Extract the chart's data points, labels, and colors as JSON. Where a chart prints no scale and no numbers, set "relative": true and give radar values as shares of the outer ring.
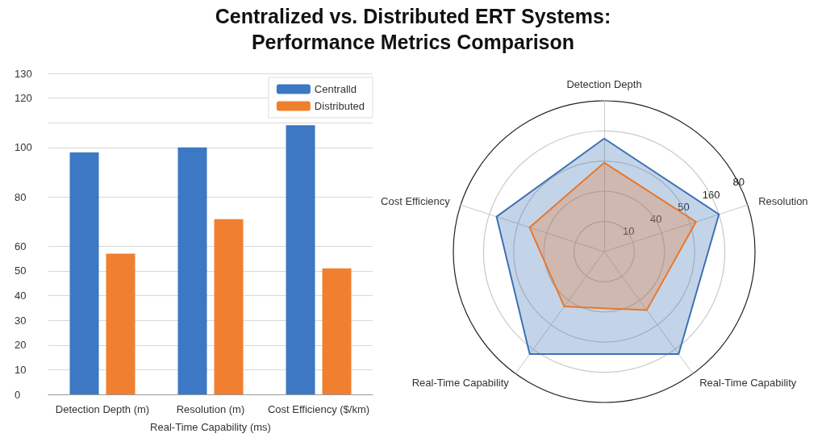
{
  "chart_data": [
    {
      "type": "bar",
      "title": "Centralized vs. Distributed ERT Systems:\nPerformance Metrics Comparison",
      "xlabel": "Real-Time Capability (ms)",
      "categories": [
        "Detection Depth (m)",
        "Resolution (m)",
        "Cost Efficiency ($/km)"
      ],
      "series": [
        {
          "name": "Centralld",
          "color": "#3c78c3",
          "values": [
            98,
            100,
            109
          ]
        },
        {
          "name": "Distributed",
          "color": "#f08030",
          "values": [
            57,
            71,
            51
          ]
        }
      ],
      "ylim": [
        0,
        130
      ],
      "yticks": [
        0,
        10,
        20,
        30,
        40,
        50,
        60,
        80,
        100,
        {
          "value": 110,
          "label": null
        },
        120,
        130
      ],
      "grid": "y",
      "legend": "top right"
    },
    {
      "type": "radar",
      "relative": true,
      "categories": [
        "Detection Depth",
        "Resolution",
        "Real-Time Capability",
        "Real-Time Capability",
        "Cost Efficiency"
      ],
      "series": [
        {
          "color": "#3d72b4",
          "values": [
            0.75,
            0.8,
            0.84,
            0.84,
            0.75
          ]
        },
        {
          "color": "#e8772e",
          "values": [
            0.59,
            0.64,
            0.48,
            0.45,
            0.52
          ]
        }
      ],
      "annotations": [
        "10",
        "40",
        "50",
        "160",
        "80"
      ],
      "grid": true
    }
  ]
}
